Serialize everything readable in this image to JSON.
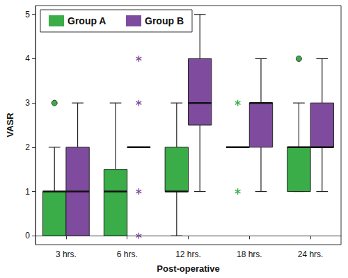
{
  "chart_data": {
    "type": "boxplot",
    "x_label": "Post-operative",
    "y_label": "VASR",
    "categories": [
      "3 hrs.",
      "6 hrs.",
      "12 hrs.",
      "18 hrs.",
      "24 hrs."
    ],
    "ylim": [
      -0.2,
      5.2
    ],
    "yticks": [
      0,
      1,
      2,
      3,
      4,
      5
    ],
    "grid": false,
    "legend": "upper left",
    "series": [
      {
        "name": "Group A",
        "color": "#3aad48",
        "values": [
          [
            0,
            0,
            1,
            1,
            2
          ],
          [
            0,
            0,
            1,
            1.5,
            3
          ],
          [
            0,
            1,
            1,
            2,
            3
          ],
          [
            2,
            2,
            2,
            2,
            2
          ],
          [
            1,
            1,
            2,
            2,
            3
          ]
        ],
        "outliers": [
          {
            "category": "3 hrs.",
            "value": 3,
            "marker": "circle"
          },
          {
            "category": "18 hrs.",
            "value": 3,
            "marker": "asterisk"
          },
          {
            "category": "18 hrs.",
            "value": 1,
            "marker": "asterisk"
          },
          {
            "category": "24 hrs.",
            "value": 4,
            "marker": "circle"
          }
        ]
      },
      {
        "name": "Group B",
        "color": "#7f4b9e",
        "values": [
          [
            0,
            0,
            1,
            2,
            3
          ],
          [
            2,
            2,
            2,
            2,
            2
          ],
          [
            1,
            2.5,
            3,
            4,
            5
          ],
          [
            1,
            2,
            3,
            3,
            4
          ],
          [
            1,
            2,
            2,
            3,
            4
          ]
        ],
        "outliers": [
          {
            "category": "6 hrs.",
            "value": 4,
            "marker": "asterisk"
          },
          {
            "category": "6 hrs.",
            "value": 3,
            "marker": "asterisk"
          },
          {
            "category": "6 hrs.",
            "value": 1,
            "marker": "asterisk"
          },
          {
            "category": "6 hrs.",
            "value": 0,
            "marker": "asterisk"
          }
        ]
      }
    ]
  }
}
